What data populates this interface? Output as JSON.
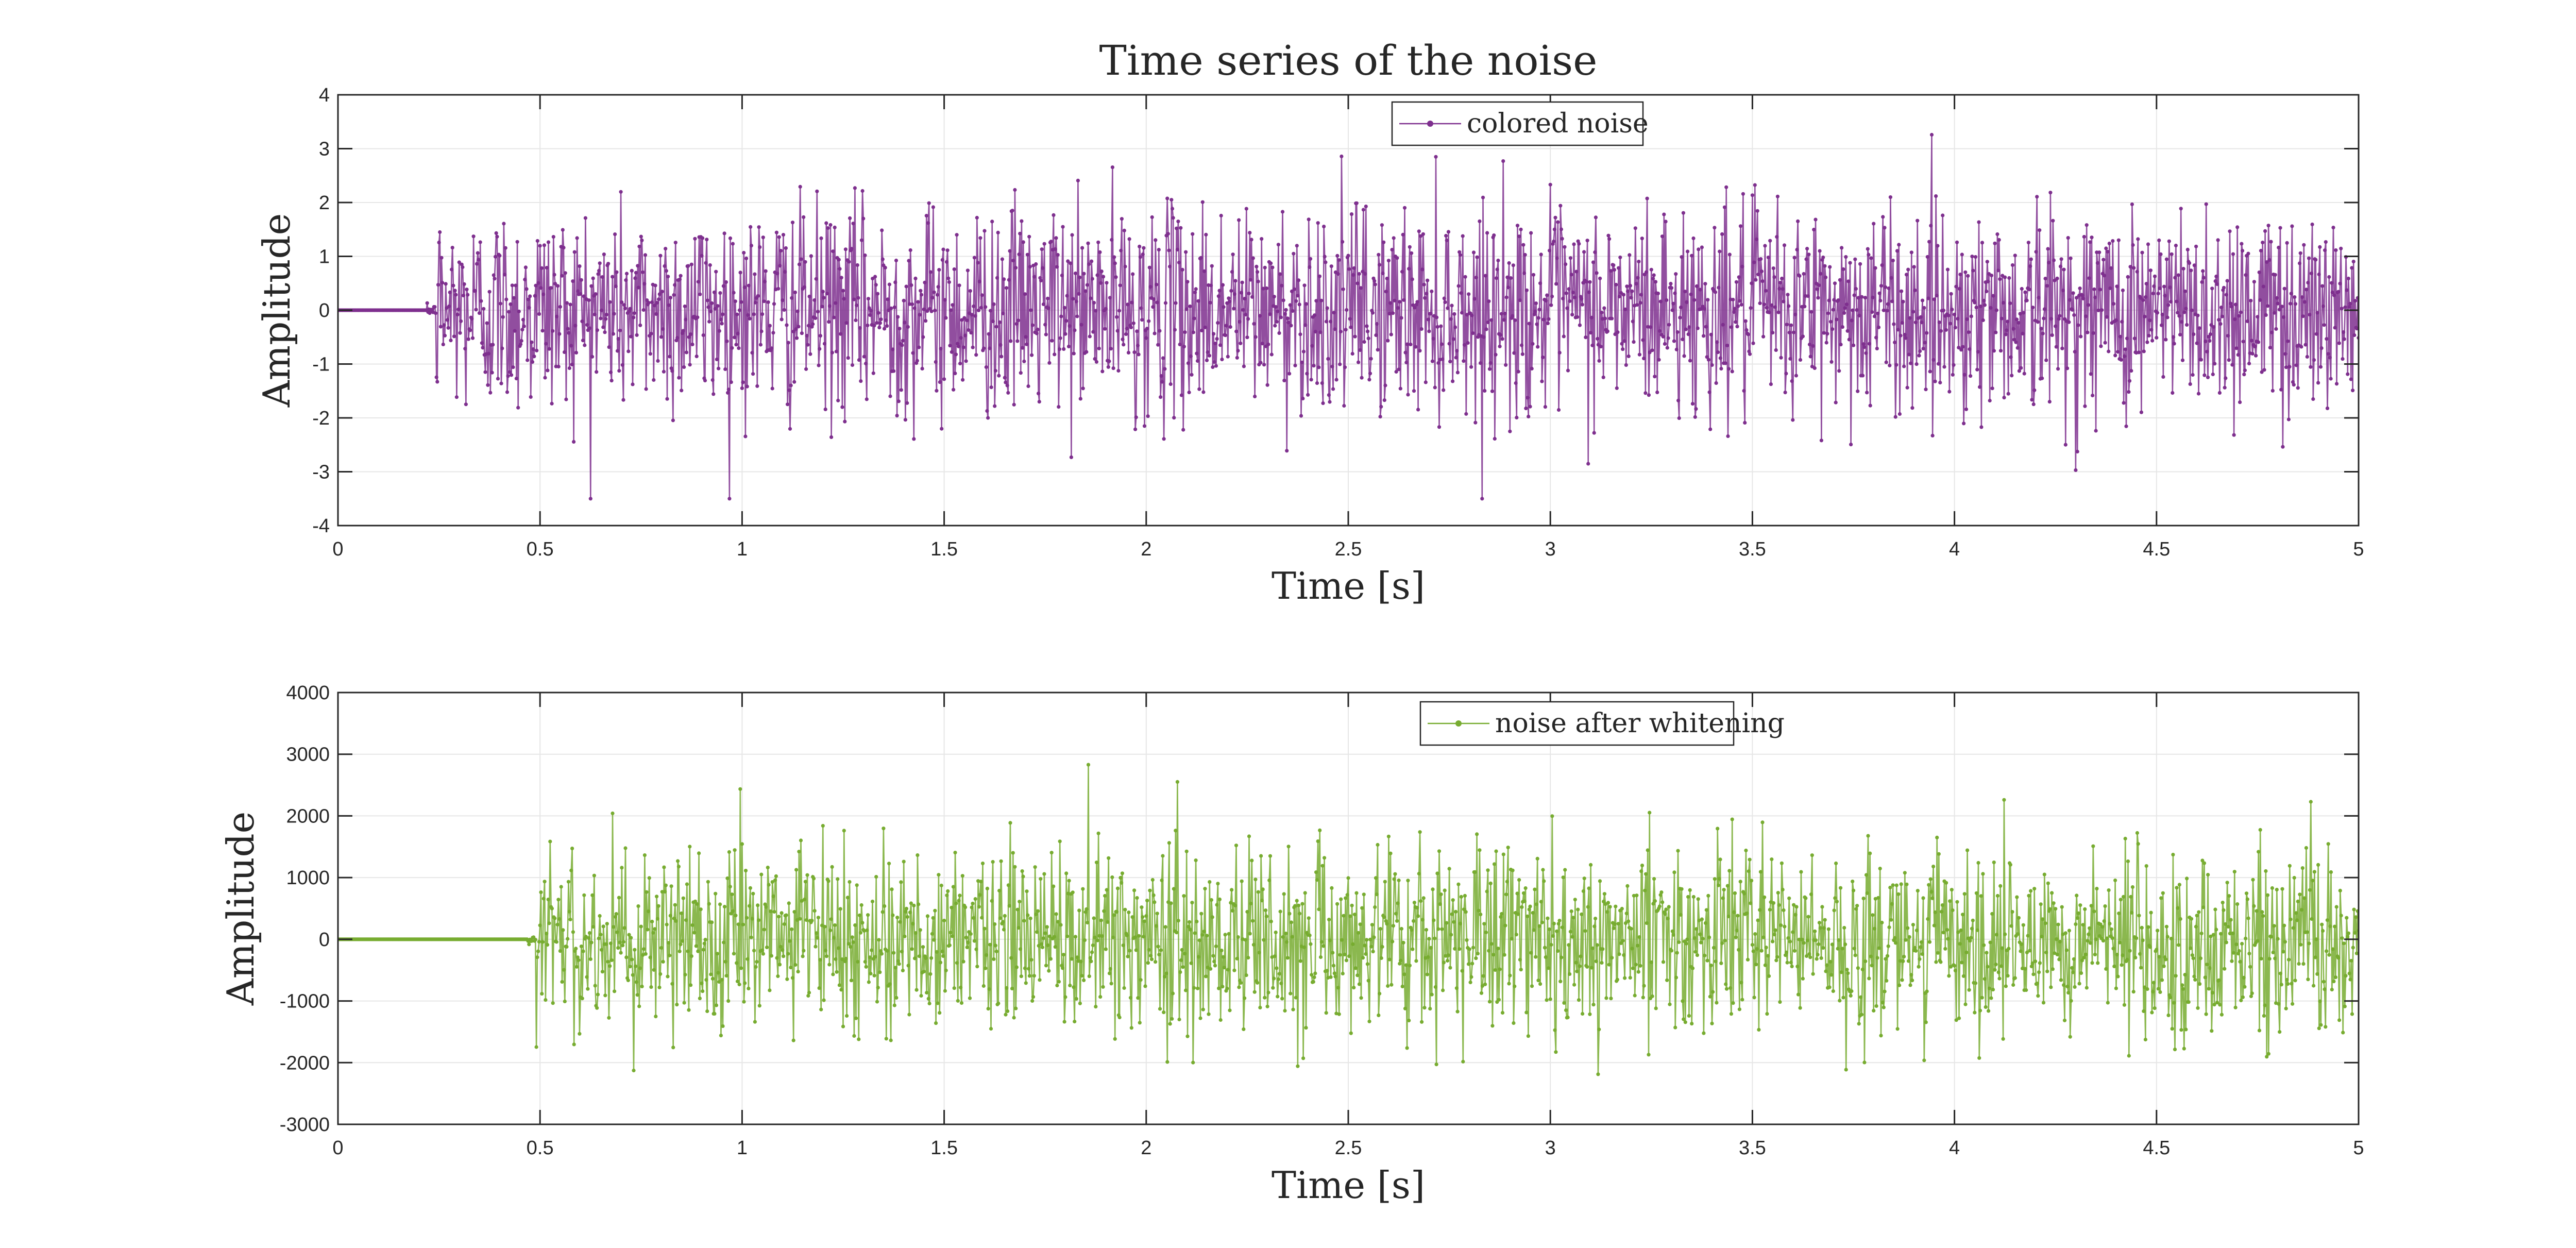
{
  "chart_data": [
    {
      "type": "line",
      "title": "Time series of the noise",
      "xlabel": "Time [s]",
      "ylabel": "Amplitude",
      "xlim": [
        0,
        5
      ],
      "ylim": [
        -4,
        4
      ],
      "xticks": [
        0,
        0.5,
        1,
        1.5,
        2,
        2.5,
        3,
        3.5,
        4,
        4.5,
        5
      ],
      "xtick_labels": [
        "0",
        "0.5",
        "1",
        "1.5",
        "2",
        "2.5",
        "3",
        "3.5",
        "4",
        "4.5",
        "5"
      ],
      "yticks": [
        -4,
        -3,
        -2,
        -1,
        0,
        1,
        2,
        3,
        4
      ],
      "ytick_labels": [
        "-4",
        "-3",
        "-2",
        "-1",
        "0",
        "1",
        "2",
        "3",
        "4"
      ],
      "grid": true,
      "legend_position": "top-center",
      "series": [
        {
          "name": "colored noise",
          "color": "#7e2f8e",
          "marker": "dot",
          "flat_until": 0.24,
          "amplitude_std": 0.95,
          "y_range_observed": [
            -3.5,
            3.7
          ],
          "sample_count_approx": 2400
        }
      ]
    },
    {
      "type": "line",
      "title": "",
      "xlabel": "Time [s]",
      "ylabel": "Amplitude",
      "xlim": [
        0,
        5
      ],
      "ylim": [
        -3000,
        4000
      ],
      "xticks": [
        0,
        0.5,
        1,
        1.5,
        2,
        2.5,
        3,
        3.5,
        4,
        4.5,
        5
      ],
      "xtick_labels": [
        "0",
        "0.5",
        "1",
        "1.5",
        "2",
        "2.5",
        "3",
        "3.5",
        "4",
        "4.5",
        "5"
      ],
      "yticks": [
        -3000,
        -2000,
        -1000,
        0,
        1000,
        2000,
        3000,
        4000
      ],
      "ytick_labels": [
        "-3000",
        "-2000",
        "-1000",
        "0",
        "1000",
        "2000",
        "3000",
        "4000"
      ],
      "grid": true,
      "legend_position": "top-center",
      "series": [
        {
          "name": "noise after whitening",
          "color": "#77ac30",
          "marker": "dot",
          "flat_until": 0.49,
          "amplitude_std": 750,
          "y_range_observed": [
            -2900,
            3050
          ],
          "sample_count_approx": 2200
        }
      ]
    }
  ]
}
